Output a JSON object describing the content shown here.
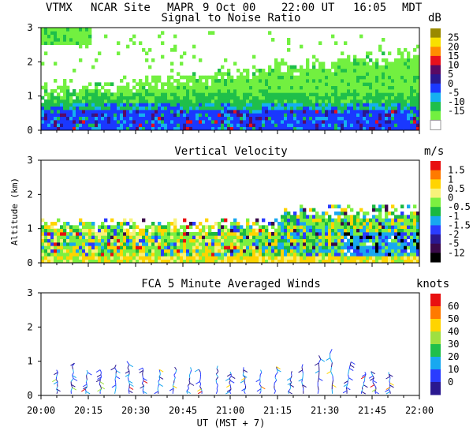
{
  "header": {
    "station": "VTMX",
    "site": "NCAR Site",
    "instrument": "MAPR",
    "date": "9 Oct 00",
    "time_ut": "22:00 UT",
    "time_local": "16:05",
    "tz": "MDT"
  },
  "chart_data": [
    {
      "type": "heatmap",
      "title": "Signal to Noise Ratio",
      "ylabel": "",
      "ylim": [
        0,
        3
      ],
      "yticks": [
        "0",
        "1",
        "2",
        "3"
      ],
      "colorbar": {
        "unit": "dB",
        "labels": [
          "25",
          "20",
          "15",
          "10",
          "5",
          "0",
          "-5",
          "-10",
          "-15"
        ],
        "colors": [
          "#9a8a00",
          "#f8e000",
          "#ff8c00",
          "#e8101c",
          "#5a0a64",
          "#2a1890",
          "#1a38ff",
          "#14b0f0",
          "#1fbf4a",
          "#72f040",
          "#ffffff"
        ]
      }
    },
    {
      "type": "heatmap",
      "title": "Vertical Velocity",
      "ylabel": "Altitude (km)",
      "ylim": [
        0,
        3
      ],
      "yticks": [
        "0",
        "1",
        "2",
        "3"
      ],
      "colorbar": {
        "unit": "m/s",
        "labels": [
          "1.5",
          "1",
          "0.5",
          "0",
          "-0.5",
          "-1",
          "-1.5",
          "-2",
          "-5",
          "-12"
        ],
        "colors": [
          "#e81010",
          "#ff7a00",
          "#ffd400",
          "#f8f27a",
          "#7cf040",
          "#1ab840",
          "#18a8f0",
          "#2a3cff",
          "#2a1890",
          "#3a0a4a",
          "#000000"
        ]
      }
    },
    {
      "type": "barbs",
      "title": "FCA 5 Minute Averaged Winds",
      "ylabel": "",
      "ylim": [
        0,
        3
      ],
      "yticks": [
        "0",
        "1",
        "2",
        "3"
      ],
      "colorbar": {
        "unit": "knots",
        "labels": [
          "60",
          "50",
          "40",
          "30",
          "20",
          "10",
          "0"
        ],
        "colors": [
          "#e81010",
          "#ff7a00",
          "#ffd400",
          "#9fe040",
          "#1fbf4a",
          "#18a8f0",
          "#2a3cff",
          "#2a1890"
        ]
      }
    }
  ],
  "xaxis": {
    "range_minutes": [
      0,
      120
    ],
    "ticks": [
      "20:00",
      "20:15",
      "20:30",
      "20:45",
      "21:00",
      "21:15",
      "21:30",
      "21:45",
      "22:00"
    ],
    "label": "UT (MST + 7)"
  }
}
